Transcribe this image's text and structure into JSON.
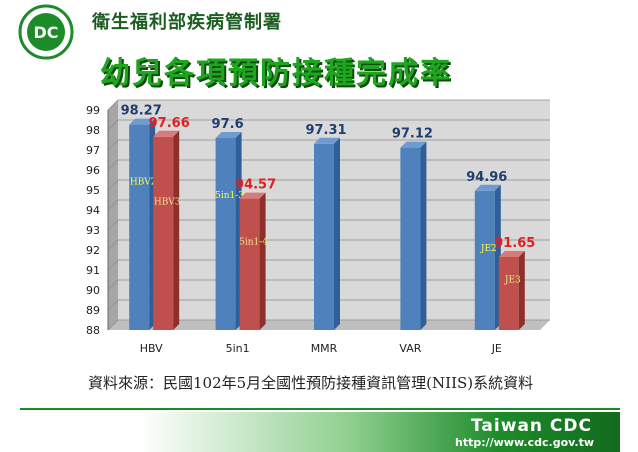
{
  "header": {
    "org_name": "衛生福利部疾病管制署"
  },
  "title": "幼兒各項預防接種完成率",
  "source_note": "資料來源：民國102年5月全國性預防接種資訊管理(NIIS)系統資料",
  "footer": {
    "brand": "Taiwan CDC",
    "url": "http://www.cdc.gov.tw"
  },
  "colors": {
    "blue": "#4f81bd",
    "red": "#c0504d",
    "title_green": "#1fa51f"
  },
  "chart_data": {
    "type": "bar",
    "title": "",
    "xlabel": "",
    "ylabel": "",
    "ylim": [
      88,
      99
    ],
    "yticks": [
      88,
      89,
      90,
      91,
      92,
      93,
      94,
      95,
      96,
      97,
      98,
      99
    ],
    "categories": [
      "HBV",
      "5in1",
      "MMR",
      "VAR",
      "JE"
    ],
    "bars": [
      {
        "category": "HBV",
        "color": "blue",
        "value": 98.27,
        "label": "98.27",
        "name": "HBV2"
      },
      {
        "category": "HBV",
        "color": "red",
        "value": 97.66,
        "label": "97.66",
        "name": "HBV3"
      },
      {
        "category": "5in1",
        "color": "blue",
        "value": 97.6,
        "label": "97.6",
        "name": "5in1-3"
      },
      {
        "category": "5in1",
        "color": "red",
        "value": 94.57,
        "label": "94.57",
        "name": "5in1-4"
      },
      {
        "category": "MMR",
        "color": "blue",
        "value": 97.31,
        "label": "97.31",
        "name": ""
      },
      {
        "category": "VAR",
        "color": "blue",
        "value": 97.12,
        "label": "97.12",
        "name": ""
      },
      {
        "category": "JE",
        "color": "blue",
        "value": 94.96,
        "label": "94.96",
        "name": "JE2"
      },
      {
        "category": "JE",
        "color": "red",
        "value": 91.65,
        "label": "91.65",
        "name": "JE3"
      }
    ],
    "grid": true
  }
}
